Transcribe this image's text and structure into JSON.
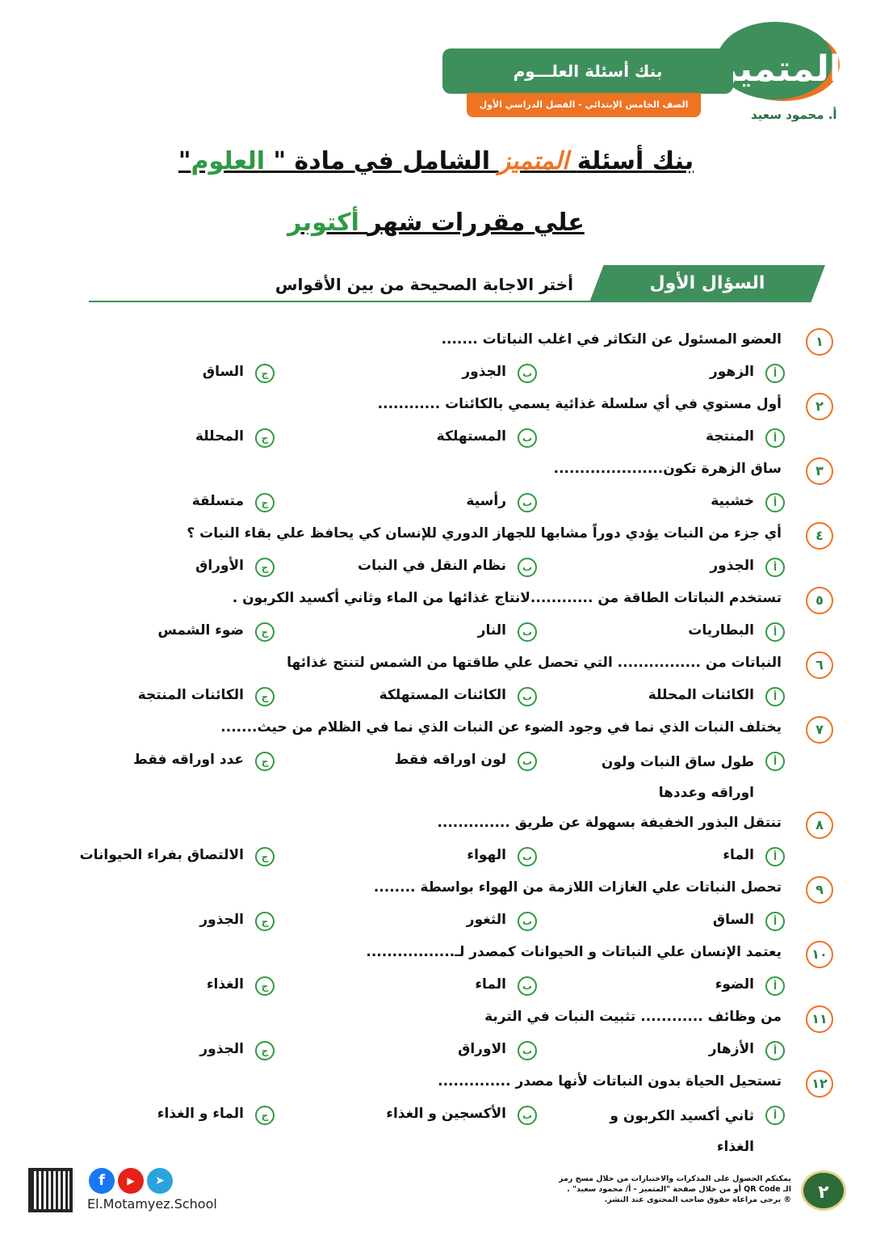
{
  "header": {
    "banner": "بنك أسئلة العلـــوم",
    "subbanner": "الصف الخامس الإبتدائي - الفصل الدراسي الأول",
    "logo_text": "المتميز",
    "author": "أ. محمود سعيد"
  },
  "title": {
    "line1_a": "بنك أسئلة",
    "line1_logo": "المتميز",
    "line1_b": "الشامل في مادة \"",
    "line1_subject": "العلوم",
    "line1_c": "\"",
    "line2_a": "علي مقررات شهر",
    "line2_month": "أكتوبر"
  },
  "section": {
    "label": "السؤال الأول",
    "instruction": "أختر الاجابة الصحيحة من بين الأقواس"
  },
  "option_letters": [
    "أ",
    "ب",
    "ج"
  ],
  "questions": [
    {
      "num": "١",
      "text": "العضو المسئول عن التكاثر في اغلب النباتات .......",
      "options": [
        "الزهور",
        "الجذور",
        "الساق"
      ]
    },
    {
      "num": "٢",
      "text": "أول مستوي في أي سلسلة غذائية يسمي بالكائنات ............",
      "options": [
        "المنتجة",
        "المستهلكة",
        "المحللة"
      ]
    },
    {
      "num": "٣",
      "text": "ساق الزهرة تكون.....................",
      "options": [
        "خشبية",
        "رأسية",
        "متسلقة"
      ]
    },
    {
      "num": "٤",
      "text": "أي جزء من النبات يؤدي دوراً مشابها للجهاز الدوري للإنسان كي يحافظ علي بقاء النبات ؟",
      "options": [
        "الجذور",
        "نظام النقل في النبات",
        "الأوراق"
      ]
    },
    {
      "num": "٥",
      "text": "تستخدم النباتات الطاقة من ............لانتاج غذائها من الماء وثاني أكسيد الكربون .",
      "options": [
        "البطاريات",
        "النار",
        "ضوء الشمس"
      ]
    },
    {
      "num": "٦",
      "text": "النباتات من ................ التي تحصل علي طاقتها من الشمس لتنتج غذائها",
      "options": [
        "الكائنات المحللة",
        "الكائنات المستهلكة",
        "الكائنات المنتجة"
      ]
    },
    {
      "num": "٧",
      "text": "يختلف النبات الذي نما في وجود الضوء عن النبات الذي نما في الظلام من حيث.......",
      "options": [
        "طول ساق النبات ولون اوراقه وعددها",
        "لون اوراقه فقط",
        "عدد اوراقه فقط"
      ]
    },
    {
      "num": "٨",
      "text": "تنتقل البذور الخفيفة بسهولة عن طريق ..............",
      "options": [
        "الماء",
        "الهواء",
        "الالتصاق بفراء الحيوانات"
      ]
    },
    {
      "num": "٩",
      "text": "تحصل النباتات علي الغازات اللازمة من الهواء بواسطة ........",
      "options": [
        "الساق",
        "الثغور",
        "الجذور"
      ]
    },
    {
      "num": "١٠",
      "text": "يعتمد الإنسان علي النباتات و الحيوانات كمصدر لـ.................",
      "options": [
        "الضوء",
        "الماء",
        "الغذاء"
      ]
    },
    {
      "num": "١١",
      "text": "من وظائف ............ تثبيت النبات في التربة",
      "options": [
        "الأزهار",
        "الاوراق",
        "الجذور"
      ]
    },
    {
      "num": "١٢",
      "text": "تستحيل الحياة بدون النباتات لأنها مصدر ..............",
      "options": [
        "ثاني أكسيد الكربون و الغذاء",
        "الأكسجين و الغذاء",
        "الماء و الغذاء"
      ]
    }
  ],
  "footer": {
    "page": "٢",
    "note": "يمكنكم الحصول على المذكرات والاختبارات من خلال مسح رمز الـ QR Code أو من خلال صفحة \"المتميز - أ/ محمود سعيد\" . ® يرجى مراعاة حقوق صاحب المحتوى عند النشر.",
    "site": "El.Motamyez.School",
    "social": [
      "facebook-icon",
      "youtube-icon",
      "telegram-icon"
    ]
  },
  "colors": {
    "green": "#3f8f5c",
    "orange": "#ee7322",
    "accent_green": "#2f9a43"
  }
}
